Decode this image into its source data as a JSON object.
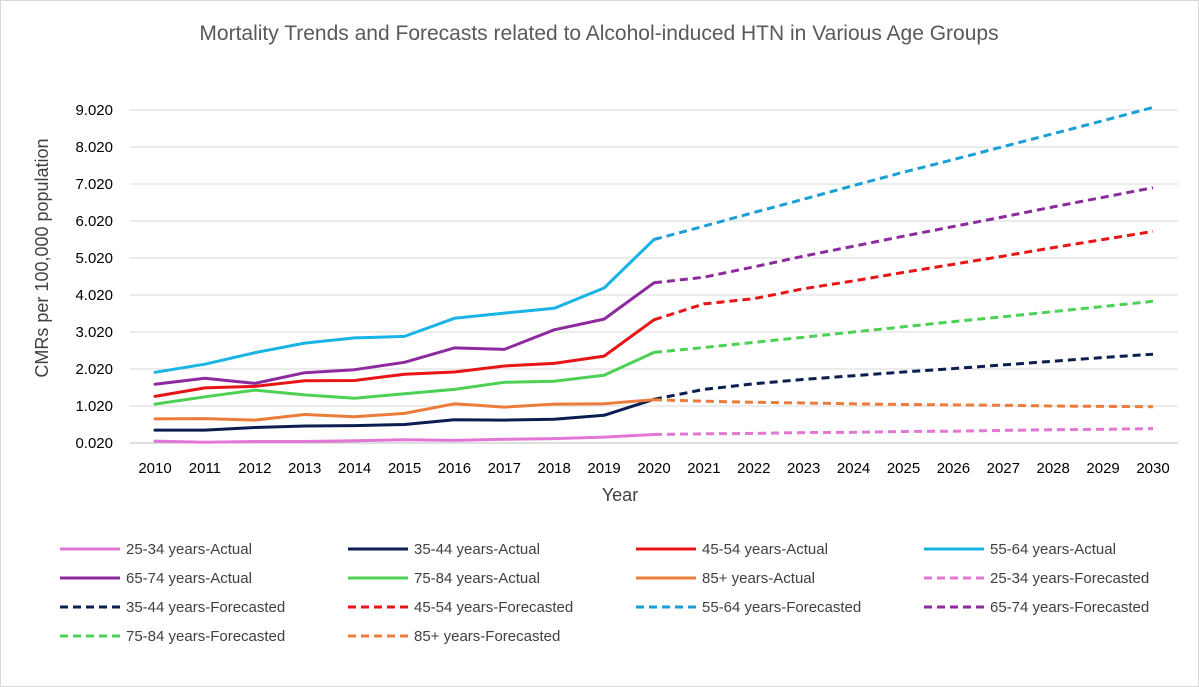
{
  "chart_data": {
    "type": "line",
    "title": "Mortality Trends and Forecasts related to Alcohol-induced HTN in Various Age Groups",
    "xlabel": "Year",
    "ylabel": "CMRs per 100,000 population",
    "x": [
      2010,
      2011,
      2012,
      2013,
      2014,
      2015,
      2016,
      2017,
      2018,
      2019,
      2020,
      2021,
      2022,
      2023,
      2024,
      2025,
      2026,
      2027,
      2028,
      2029,
      2030
    ],
    "x_tick_labels": [
      "2010",
      "2011",
      "2012",
      "2013",
      "2014",
      "2015",
      "2016",
      "2017",
      "2018",
      "2019",
      "2020",
      "2021",
      "2022",
      "2023",
      "2024",
      "2025",
      "2026",
      "2027",
      "2028",
      "2029",
      "2030"
    ],
    "y_ticks": [
      0.02,
      1.02,
      2.02,
      3.02,
      4.02,
      5.02,
      6.02,
      7.02,
      8.02,
      9.02
    ],
    "y_tick_labels": [
      "0.020",
      "1.020",
      "2.020",
      "3.020",
      "4.020",
      "5.020",
      "6.020",
      "7.020",
      "8.020",
      "9.020"
    ],
    "ylim": [
      0.02,
      9.02
    ],
    "grid": "horizontal",
    "legend_position": "bottom",
    "series": [
      {
        "name": "25-34 years-Actual",
        "color": "#e377d6",
        "style": "solid",
        "x": [
          2010,
          2011,
          2012,
          2013,
          2014,
          2015,
          2016,
          2017,
          2018,
          2019,
          2020
        ],
        "values": [
          0.07,
          0.04,
          0.06,
          0.06,
          0.08,
          0.11,
          0.09,
          0.12,
          0.14,
          0.18,
          0.25
        ]
      },
      {
        "name": "35-44 years-Actual",
        "color": "#0a1f4f",
        "style": "solid",
        "x": [
          2010,
          2011,
          2012,
          2013,
          2014,
          2015,
          2016,
          2017,
          2018,
          2019,
          2020
        ],
        "values": [
          0.37,
          0.37,
          0.44,
          0.48,
          0.49,
          0.52,
          0.65,
          0.64,
          0.66,
          0.77,
          1.2
        ]
      },
      {
        "name": "45-54 years-Actual",
        "color": "#e81416",
        "style": "solid",
        "x": [
          2010,
          2011,
          2012,
          2013,
          2014,
          2015,
          2016,
          2017,
          2018,
          2019,
          2020
        ],
        "values": [
          1.28,
          1.51,
          1.55,
          1.7,
          1.71,
          1.88,
          1.94,
          2.1,
          2.17,
          2.37,
          3.35
        ]
      },
      {
        "name": "55-64 years-Actual",
        "color": "#1ab3e6",
        "style": "solid",
        "x": [
          2010,
          2011,
          2012,
          2013,
          2014,
          2015,
          2016,
          2017,
          2018,
          2019,
          2020
        ],
        "values": [
          1.93,
          2.15,
          2.46,
          2.72,
          2.86,
          2.9,
          3.39,
          3.53,
          3.66,
          4.21,
          5.52
        ]
      },
      {
        "name": "65-74 years-Actual",
        "color": "#8c2a9e",
        "style": "solid",
        "x": [
          2010,
          2011,
          2012,
          2013,
          2014,
          2015,
          2016,
          2017,
          2018,
          2019,
          2020
        ],
        "values": [
          1.61,
          1.77,
          1.63,
          1.92,
          2.0,
          2.2,
          2.59,
          2.55,
          3.08,
          3.37,
          4.35
        ]
      },
      {
        "name": "75-84 years-Actual",
        "color": "#4cd154",
        "style": "solid",
        "x": [
          2010,
          2011,
          2012,
          2013,
          2014,
          2015,
          2016,
          2017,
          2018,
          2019,
          2020
        ],
        "values": [
          1.07,
          1.27,
          1.45,
          1.32,
          1.23,
          1.35,
          1.47,
          1.66,
          1.69,
          1.85,
          2.47
        ]
      },
      {
        "name": "85+ years-Actual",
        "color": "#ec7c3b",
        "style": "solid",
        "x": [
          2010,
          2011,
          2012,
          2013,
          2014,
          2015,
          2016,
          2017,
          2018,
          2019,
          2020
        ],
        "values": [
          0.67,
          0.68,
          0.64,
          0.79,
          0.73,
          0.82,
          1.08,
          0.99,
          1.07,
          1.08,
          1.19
        ]
      },
      {
        "name": "25-34 years-Forecasted",
        "color": "#e377d6",
        "style": "dashed",
        "x": [
          2020,
          2021,
          2022,
          2023,
          2024,
          2025,
          2026,
          2027,
          2028,
          2029,
          2030
        ],
        "values": [
          0.25,
          0.27,
          0.28,
          0.3,
          0.31,
          0.33,
          0.34,
          0.36,
          0.38,
          0.39,
          0.41
        ]
      },
      {
        "name": "35-44 years-Forecasted",
        "color": "#0a1f4f",
        "style": "dashed",
        "x": [
          2020,
          2021,
          2022,
          2023,
          2024,
          2025,
          2026,
          2027,
          2028,
          2029,
          2030
        ],
        "values": [
          1.2,
          1.47,
          1.62,
          1.74,
          1.84,
          1.94,
          2.03,
          2.13,
          2.23,
          2.33,
          2.42
        ]
      },
      {
        "name": "45-54 years-Forecasted",
        "color": "#e81416",
        "style": "dashed",
        "x": [
          2020,
          2021,
          2022,
          2023,
          2024,
          2025,
          2026,
          2027,
          2028,
          2029,
          2030
        ],
        "values": [
          3.35,
          3.78,
          3.92,
          4.19,
          4.4,
          4.63,
          4.85,
          5.07,
          5.3,
          5.52,
          5.74
        ]
      },
      {
        "name": "55-64 years-Forecasted",
        "color": "#1a9fd6",
        "style": "dashed",
        "x": [
          2020,
          2021,
          2022,
          2023,
          2024,
          2025,
          2026,
          2027,
          2028,
          2029,
          2030
        ],
        "values": [
          5.52,
          5.88,
          6.25,
          6.61,
          6.98,
          7.34,
          7.68,
          8.03,
          8.38,
          8.73,
          9.09
        ]
      },
      {
        "name": "65-74 years-Forecasted",
        "color": "#8c2a9e",
        "style": "dashed",
        "x": [
          2020,
          2021,
          2022,
          2023,
          2024,
          2025,
          2026,
          2027,
          2028,
          2029,
          2030
        ],
        "values": [
          4.35,
          4.5,
          4.78,
          5.07,
          5.34,
          5.61,
          5.87,
          6.13,
          6.4,
          6.66,
          6.92
        ]
      },
      {
        "name": "75-84 years-Forecasted",
        "color": "#4cd154",
        "style": "dashed",
        "x": [
          2020,
          2021,
          2022,
          2023,
          2024,
          2025,
          2026,
          2027,
          2028,
          2029,
          2030
        ],
        "values": [
          2.47,
          2.6,
          2.74,
          2.88,
          3.02,
          3.16,
          3.3,
          3.43,
          3.57,
          3.71,
          3.85
        ]
      },
      {
        "name": "85+ years-Forecasted",
        "color": "#ec7c3b",
        "style": "dashed",
        "x": [
          2020,
          2021,
          2022,
          2023,
          2024,
          2025,
          2026,
          2027,
          2028,
          2029,
          2030
        ],
        "values": [
          1.19,
          1.15,
          1.12,
          1.1,
          1.08,
          1.06,
          1.05,
          1.04,
          1.02,
          1.01,
          1.0
        ]
      }
    ]
  }
}
